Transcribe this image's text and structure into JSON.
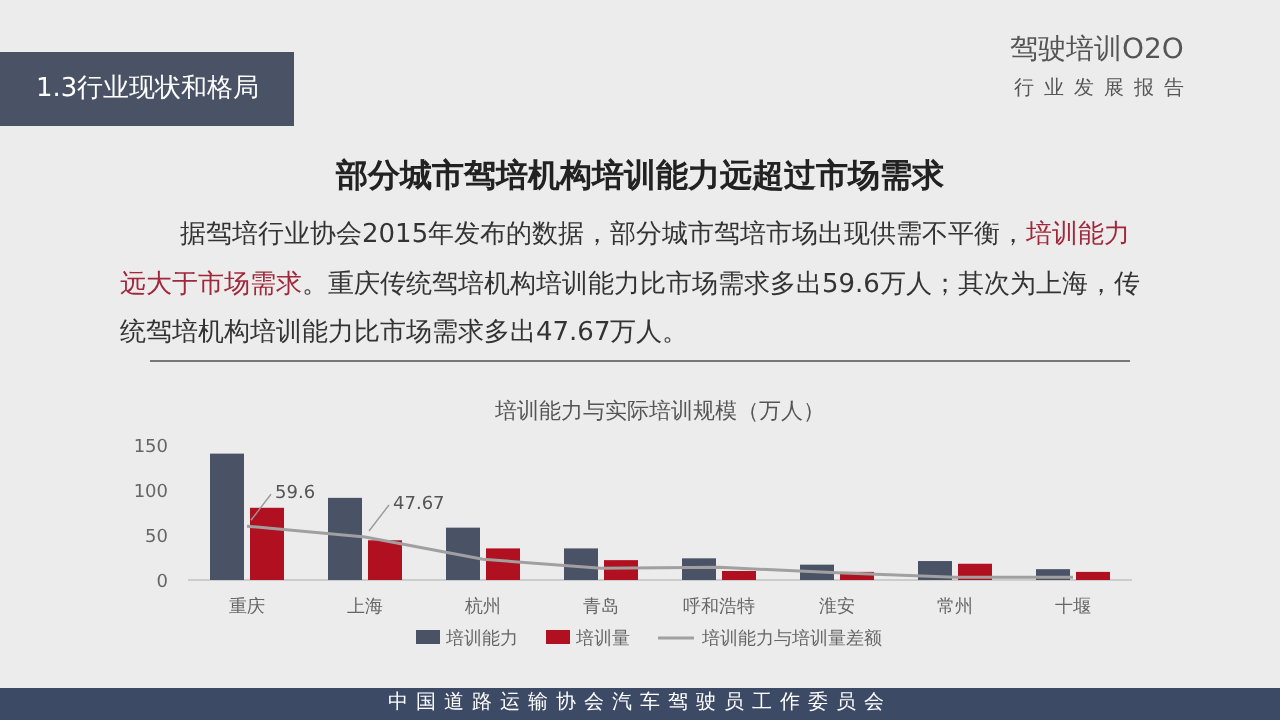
{
  "chart_data": {
    "type": "bar",
    "title": "培训能力与实际培训规模（万人）",
    "annotations": [
      "1.3行业现状和格局",
      "驾驶培训O2O",
      "行业发展报告",
      "部分城市驾培机构培训能力远超过市场需求",
      "据驾培行业协会2015年发布的数据，部分城市驾培市场出现供需不平衡，",
      "培训能力远大于市场需求",
      "。重庆传统驾培机构培训能力比市场需求多出59.6万人；其次为上海，传统驾培机构培训能力比市场需求多出47.67万人。",
      "中国道路运输协会汽车驾驶员工作委员会"
    ],
    "categories": [
      "重庆",
      "上海",
      "杭州",
      "青岛",
      "呼和浩特",
      "淮安",
      "常州",
      "十堰"
    ],
    "series": [
      {
        "name": "培训能力",
        "color": "#4a5266",
        "values": [
          140,
          91,
          58,
          35,
          24,
          17,
          21,
          12
        ]
      },
      {
        "name": "培训量",
        "color": "#b0101f",
        "values": [
          80,
          44,
          35,
          22,
          10,
          9,
          18,
          9
        ]
      },
      {
        "name": "培训能力与培训量差额",
        "type": "line",
        "color": "#a0a0a0",
        "values": [
          59.6,
          47.67,
          23,
          13,
          14,
          8,
          3,
          3
        ],
        "value_labels": [
          "59.6",
          "47.67",
          null,
          null,
          null,
          null,
          null,
          null
        ]
      }
    ],
    "ylim": [
      0,
      150
    ],
    "yticks": [
      0,
      50,
      100,
      150
    ],
    "legend": "bottom"
  }
}
